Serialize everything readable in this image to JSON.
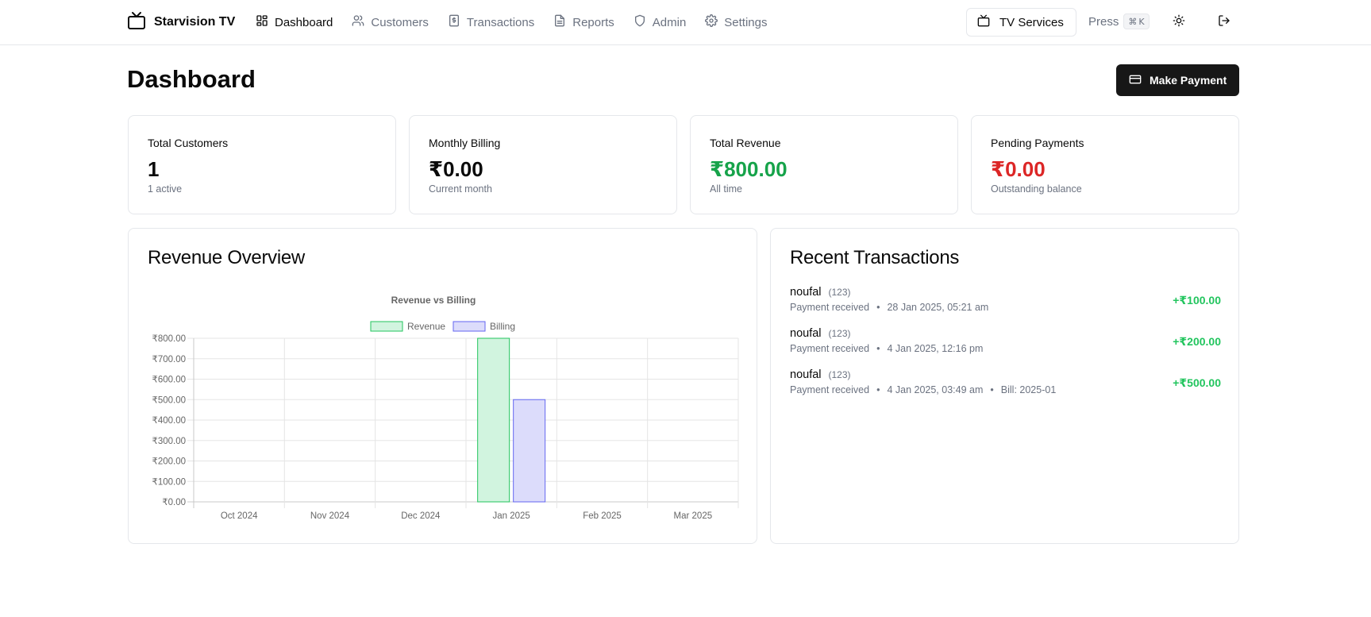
{
  "brand": {
    "name": "Starvision TV",
    "icon": "tv-icon"
  },
  "nav": [
    {
      "label": "Dashboard",
      "icon": "layout-grid-icon",
      "active": true
    },
    {
      "label": "Customers",
      "icon": "users-icon",
      "active": false
    },
    {
      "label": "Transactions",
      "icon": "receipt-icon",
      "active": false
    },
    {
      "label": "Reports",
      "icon": "file-text-icon",
      "active": false
    },
    {
      "label": "Admin",
      "icon": "shield-icon",
      "active": false
    },
    {
      "label": "Settings",
      "icon": "gear-icon",
      "active": false
    }
  ],
  "header_actions": {
    "services_label": "TV Services",
    "press_label": "Press",
    "shortcut_symbol": "⌘",
    "shortcut_key": "K"
  },
  "page": {
    "title": "Dashboard",
    "make_payment_label": "Make Payment"
  },
  "stats": [
    {
      "title": "Total Customers",
      "value": "1",
      "sub": "1 active",
      "tone": "default"
    },
    {
      "title": "Monthly Billing",
      "value": "₹0.00",
      "sub": "Current month",
      "tone": "default"
    },
    {
      "title": "Total Revenue",
      "value": "₹800.00",
      "sub": "All time",
      "tone": "green"
    },
    {
      "title": "Pending Payments",
      "value": "₹0.00",
      "sub": "Outstanding balance",
      "tone": "red"
    }
  ],
  "revenue_section": {
    "title": "Revenue Overview"
  },
  "chart_data": {
    "type": "bar",
    "title": "Revenue vs Billing",
    "categories": [
      "Oct 2024",
      "Nov 2024",
      "Dec 2024",
      "Jan 2025",
      "Feb 2025",
      "Mar 2025"
    ],
    "series": [
      {
        "name": "Revenue",
        "values": [
          0,
          0,
          0,
          800,
          0,
          0
        ],
        "fill": "#d1f4df",
        "stroke": "#22c55e"
      },
      {
        "name": "Billing",
        "values": [
          0,
          0,
          0,
          500,
          0,
          0
        ],
        "fill": "#dcdcfb",
        "stroke": "#6366f1"
      }
    ],
    "ylim": [
      0,
      800
    ],
    "yticks": [
      "₹0.00",
      "₹100.00",
      "₹200.00",
      "₹300.00",
      "₹400.00",
      "₹500.00",
      "₹600.00",
      "₹700.00",
      "₹800.00"
    ],
    "ytick_values": [
      0,
      100,
      200,
      300,
      400,
      500,
      600,
      700,
      800
    ],
    "xlabel": "",
    "ylabel": "",
    "legend": "top-center",
    "grid": true
  },
  "transactions_section": {
    "title": "Recent Transactions"
  },
  "transactions": [
    {
      "name": "noufal",
      "code": "(123)",
      "status": "Payment received",
      "date": "28 Jan 2025, 05:21 am",
      "bill": "",
      "amount": "+₹100.00"
    },
    {
      "name": "noufal",
      "code": "(123)",
      "status": "Payment received",
      "date": "4 Jan 2025, 12:16 pm",
      "bill": "",
      "amount": "+₹200.00"
    },
    {
      "name": "noufal",
      "code": "(123)",
      "status": "Payment received",
      "date": "4 Jan 2025, 03:49 am",
      "bill": "Bill: 2025-01",
      "amount": "+₹500.00"
    }
  ]
}
